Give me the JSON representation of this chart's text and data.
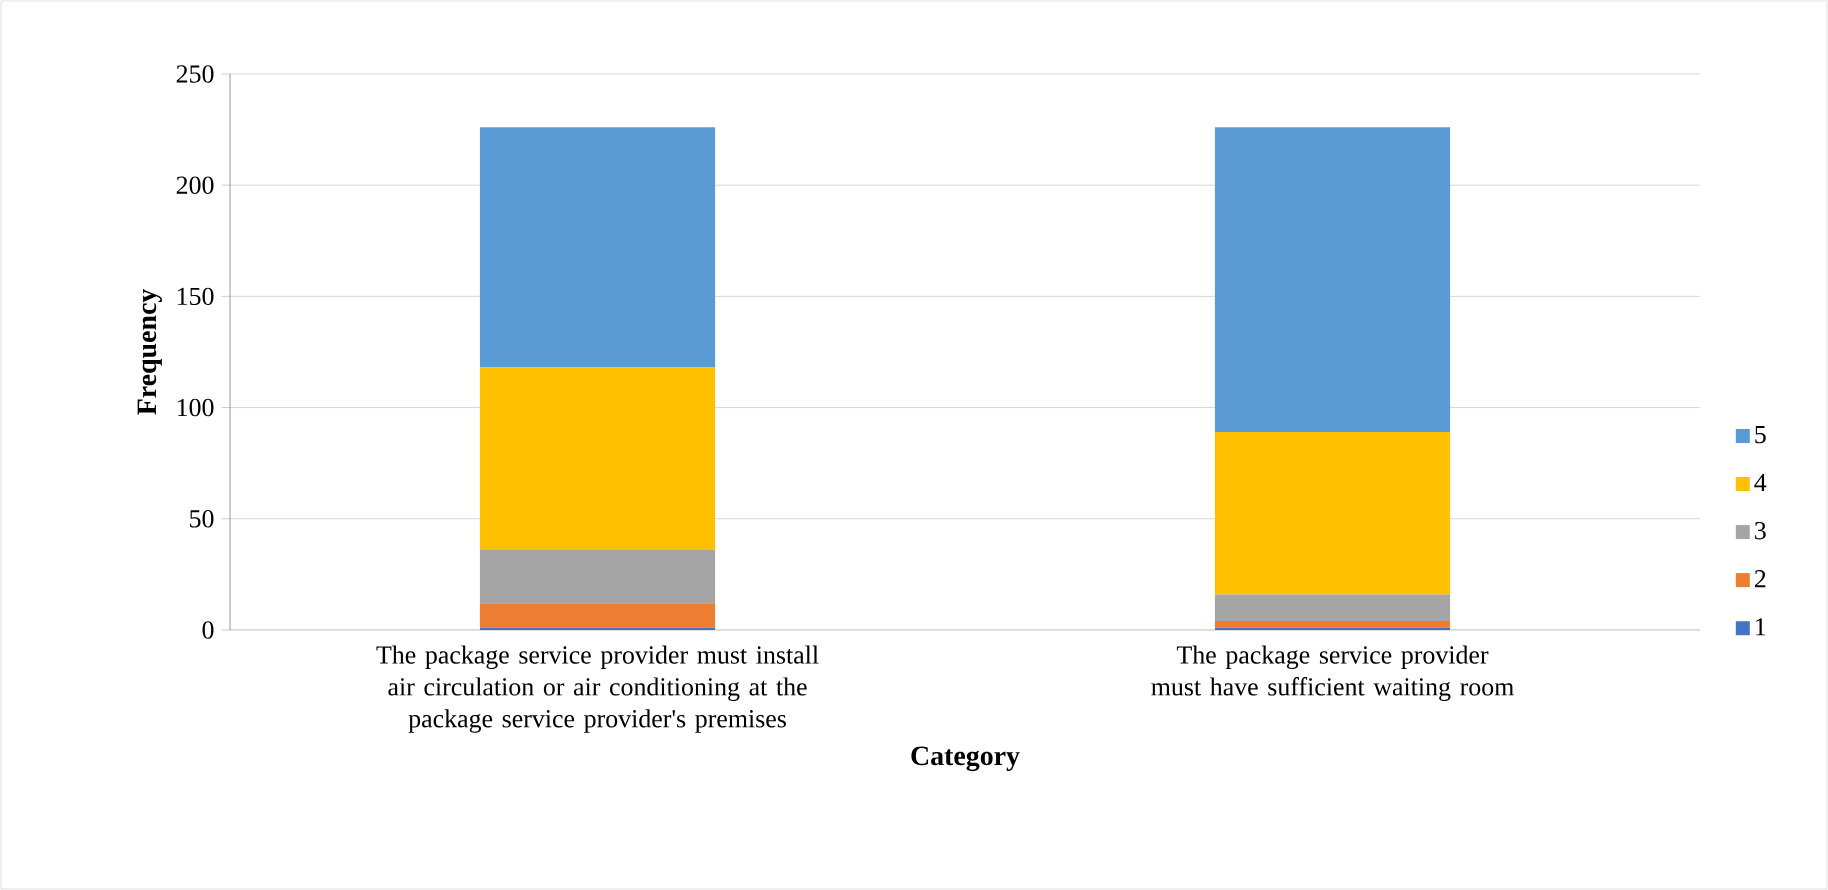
{
  "chart_data": {
    "type": "bar",
    "stacked": true,
    "xlabel": "Category",
    "ylabel": "Frequency",
    "categories": [
      "The package service provider must install air circulation or air conditioning at the package service provider's premises",
      "The package service provider must have sufficient waiting room"
    ],
    "series": [
      {
        "name": "1",
        "color": "#4472c4",
        "values": [
          1,
          1
        ]
      },
      {
        "name": "2",
        "color": "#ed7d31",
        "values": [
          11,
          3
        ]
      },
      {
        "name": "3",
        "color": "#a5a5a5",
        "values": [
          24,
          12
        ]
      },
      {
        "name": "4",
        "color": "#ffc000",
        "values": [
          82,
          73
        ]
      },
      {
        "name": "5",
        "color": "#5b9bd5",
        "values": [
          108,
          137
        ]
      }
    ],
    "ylim": [
      0,
      250
    ],
    "yticks": [
      0,
      50,
      100,
      150,
      200,
      250
    ],
    "grid": "y",
    "legend": "right"
  }
}
